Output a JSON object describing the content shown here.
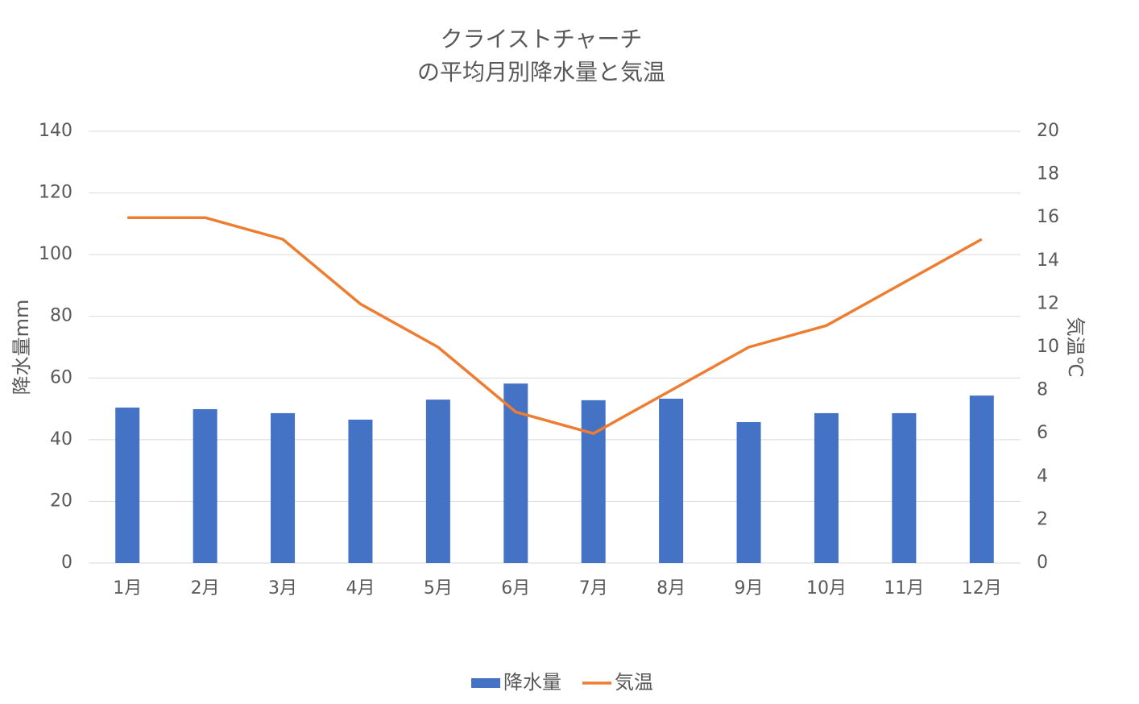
{
  "chart_data": {
    "type": "bar_line",
    "title": [
      "クライストチャーチ",
      "の平均月別降水量と気温"
    ],
    "y_label": "降水量mm",
    "y2_label": "気温℃",
    "categories": [
      "1月",
      "2月",
      "3月",
      "4月",
      "5月",
      "6月",
      "7月",
      "8月",
      "9月",
      "10月",
      "11月",
      "12月"
    ],
    "series": [
      {
        "name": "降水量",
        "type": "bar",
        "color": "#4472c4",
        "values": [
          50.4,
          49.9,
          48.6,
          46.5,
          53.0,
          58.2,
          52.8,
          53.3,
          45.7,
          48.6,
          48.6,
          54.3
        ]
      },
      {
        "name": "気温",
        "type": "line",
        "axis": "y2",
        "color": "#ed7d31",
        "values": [
          16,
          16,
          15,
          12,
          10,
          7,
          6,
          8,
          10,
          11,
          13,
          15
        ]
      }
    ],
    "ylim": [
      0,
      140
    ],
    "yticks": [
      0,
      20,
      40,
      60,
      80,
      100,
      120,
      140
    ],
    "y2lim": [
      0,
      20
    ],
    "y2ticks": [
      0,
      2,
      4,
      6,
      8,
      10,
      12,
      14,
      16,
      18,
      20
    ],
    "grid": true,
    "legend": "bottom"
  }
}
